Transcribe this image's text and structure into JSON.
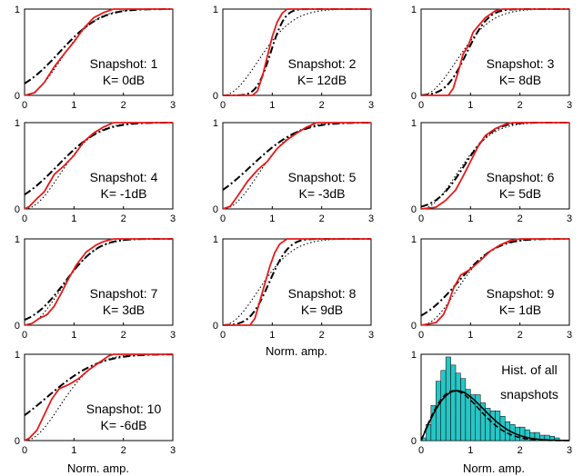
{
  "chart_data": {
    "type": "line",
    "x_range": [
      0,
      3
    ],
    "y_range": [
      0,
      1
    ],
    "x_ticks": [
      "0",
      "1",
      "2",
      "3"
    ],
    "y_ticks": [
      "0",
      "1"
    ],
    "xlabel": "Norm. amp.",
    "grid": false,
    "colors": {
      "empirical": "#e8191a",
      "fit": "#000000",
      "bars": "#27c6c6"
    },
    "panels": [
      {
        "snapshot": "Snapshot: 1",
        "k_text": "K= 0dB",
        "K_dB": 0,
        "empirical": [
          [
            0,
            0
          ],
          [
            0.2,
            0.03
          ],
          [
            0.4,
            0.15
          ],
          [
            0.6,
            0.33
          ],
          [
            0.8,
            0.48
          ],
          [
            1.0,
            0.62
          ],
          [
            1.2,
            0.78
          ],
          [
            1.4,
            0.9
          ],
          [
            1.6,
            0.96
          ],
          [
            1.8,
            1.0
          ],
          [
            2.0,
            1.0
          ],
          [
            3.0,
            1.0
          ]
        ]
      },
      {
        "snapshot": "Snapshot: 2",
        "k_text": "K= 12dB",
        "K_dB": 12,
        "empirical": [
          [
            0,
            0
          ],
          [
            0.6,
            0.0
          ],
          [
            0.7,
            0.05
          ],
          [
            0.8,
            0.22
          ],
          [
            0.9,
            0.45
          ],
          [
            1.0,
            0.68
          ],
          [
            1.1,
            0.85
          ],
          [
            1.2,
            0.95
          ],
          [
            1.3,
            1.0
          ],
          [
            3.0,
            1.0
          ]
        ]
      },
      {
        "snapshot": "Snapshot: 3",
        "k_text": "K= 8dB",
        "K_dB": 8,
        "empirical": [
          [
            0,
            0
          ],
          [
            0.55,
            0.0
          ],
          [
            0.65,
            0.08
          ],
          [
            0.75,
            0.27
          ],
          [
            0.85,
            0.48
          ],
          [
            0.95,
            0.57
          ],
          [
            1.05,
            0.73
          ],
          [
            1.15,
            0.8
          ],
          [
            1.3,
            0.9
          ],
          [
            1.5,
            0.98
          ],
          [
            1.65,
            1.0
          ],
          [
            3.0,
            1.0
          ]
        ]
      },
      {
        "snapshot": "Snapshot: 4",
        "k_text": "K= -1dB",
        "K_dB": -1,
        "empirical": [
          [
            0,
            0
          ],
          [
            0.1,
            0.03
          ],
          [
            0.25,
            0.12
          ],
          [
            0.4,
            0.2
          ],
          [
            0.6,
            0.4
          ],
          [
            0.8,
            0.5
          ],
          [
            1.0,
            0.62
          ],
          [
            1.2,
            0.78
          ],
          [
            1.4,
            0.88
          ],
          [
            1.6,
            0.95
          ],
          [
            1.8,
            1.0
          ],
          [
            3.0,
            1.0
          ]
        ]
      },
      {
        "snapshot": "Snapshot: 5",
        "k_text": "K= -3dB",
        "K_dB": -3,
        "empirical": [
          [
            0,
            0
          ],
          [
            0.15,
            0.03
          ],
          [
            0.3,
            0.15
          ],
          [
            0.5,
            0.32
          ],
          [
            0.7,
            0.45
          ],
          [
            0.9,
            0.55
          ],
          [
            1.1,
            0.7
          ],
          [
            1.3,
            0.8
          ],
          [
            1.5,
            0.88
          ],
          [
            1.7,
            0.95
          ],
          [
            1.9,
            1.0
          ],
          [
            3.0,
            1.0
          ]
        ]
      },
      {
        "snapshot": "Snapshot: 6",
        "k_text": "K= 5dB",
        "K_dB": 5,
        "empirical": [
          [
            0,
            0
          ],
          [
            0.3,
            0.02
          ],
          [
            0.5,
            0.1
          ],
          [
            0.7,
            0.22
          ],
          [
            0.85,
            0.38
          ],
          [
            1.0,
            0.55
          ],
          [
            1.15,
            0.72
          ],
          [
            1.3,
            0.85
          ],
          [
            1.5,
            0.93
          ],
          [
            1.7,
            0.98
          ],
          [
            1.85,
            1.0
          ],
          [
            3.0,
            1.0
          ]
        ]
      },
      {
        "snapshot": "Snapshot: 7",
        "k_text": "K= 3dB",
        "K_dB": 3,
        "empirical": [
          [
            0,
            0
          ],
          [
            0.15,
            0.02
          ],
          [
            0.3,
            0.08
          ],
          [
            0.45,
            0.12
          ],
          [
            0.6,
            0.22
          ],
          [
            0.75,
            0.38
          ],
          [
            0.9,
            0.55
          ],
          [
            1.05,
            0.7
          ],
          [
            1.25,
            0.85
          ],
          [
            1.45,
            0.93
          ],
          [
            1.6,
            0.97
          ],
          [
            1.8,
            1.0
          ],
          [
            3.0,
            1.0
          ]
        ]
      },
      {
        "snapshot": "Snapshot: 8",
        "k_text": "K= 9dB",
        "K_dB": 9,
        "empirical": [
          [
            0,
            0
          ],
          [
            0.55,
            0.0
          ],
          [
            0.65,
            0.08
          ],
          [
            0.75,
            0.28
          ],
          [
            0.85,
            0.48
          ],
          [
            0.95,
            0.68
          ],
          [
            1.05,
            0.84
          ],
          [
            1.15,
            0.94
          ],
          [
            1.3,
            1.0
          ],
          [
            3.0,
            1.0
          ]
        ]
      },
      {
        "snapshot": "Snapshot: 9",
        "k_text": "K= 1dB",
        "K_dB": 1,
        "empirical": [
          [
            0,
            0
          ],
          [
            0.3,
            0.03
          ],
          [
            0.45,
            0.12
          ],
          [
            0.55,
            0.25
          ],
          [
            0.65,
            0.42
          ],
          [
            0.8,
            0.58
          ],
          [
            1.0,
            0.65
          ],
          [
            1.2,
            0.75
          ],
          [
            1.4,
            0.86
          ],
          [
            1.6,
            0.93
          ],
          [
            1.8,
            0.98
          ],
          [
            2.0,
            1.0
          ],
          [
            3.0,
            1.0
          ]
        ]
      },
      {
        "snapshot": "Snapshot: 10",
        "k_text": "K= -6dB",
        "K_dB": -6,
        "empirical": [
          [
            0,
            0
          ],
          [
            0.1,
            0.03
          ],
          [
            0.25,
            0.12
          ],
          [
            0.4,
            0.3
          ],
          [
            0.55,
            0.48
          ],
          [
            0.7,
            0.6
          ],
          [
            0.9,
            0.65
          ],
          [
            1.1,
            0.72
          ],
          [
            1.3,
            0.82
          ],
          [
            1.5,
            0.9
          ],
          [
            1.7,
            0.98
          ],
          [
            1.8,
            1.0
          ],
          [
            3.0,
            1.0
          ]
        ]
      }
    ],
    "histogram": {
      "title_line1": "Hist. of all",
      "title_line2": "snapshots",
      "bin_width": 0.1,
      "bin_start": 0.0,
      "counts": [
        0.05,
        0.3,
        0.65,
        1.1,
        1.3,
        1.55,
        1.4,
        1.25,
        1.15,
        0.95,
        0.85,
        0.85,
        0.7,
        0.6,
        0.55,
        0.55,
        0.45,
        0.35,
        0.3,
        0.25,
        0.25,
        0.2,
        0.15,
        0.15,
        0.1,
        0.1,
        0.08,
        0.05
      ]
    }
  }
}
